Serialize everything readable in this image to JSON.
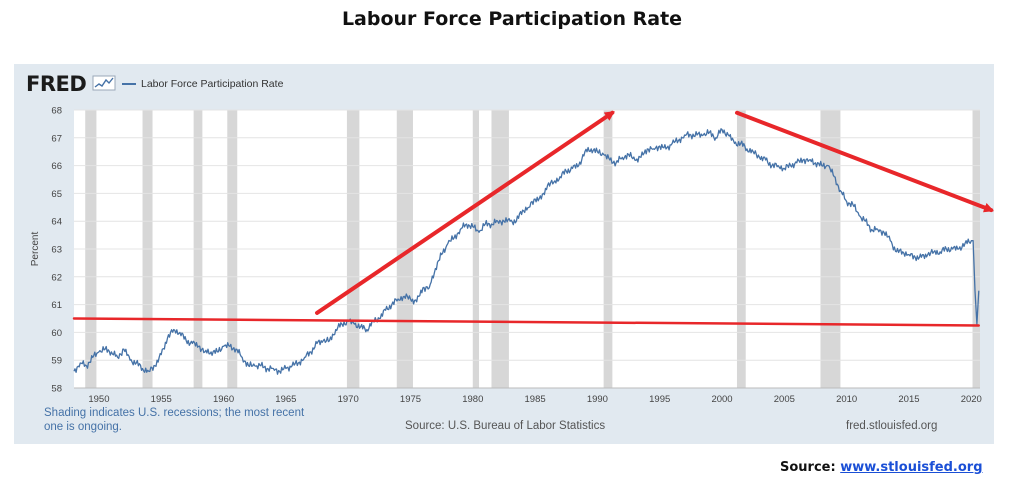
{
  "page_title": "Labour Force Participation Rate",
  "fred": {
    "logo": "FRED",
    "logo_icon": "sparkline-icon",
    "legend_label": "Labor Force Participation Rate"
  },
  "notes": {
    "shading": "Shading indicates U.S. recessions; the most recent one is ongoing.",
    "source": "Source: U.S. Bureau of Labor Statistics",
    "site": "fred.stlouisfed.org"
  },
  "attribution": {
    "label": "Source:",
    "link_text": "www.stlouisfed.org"
  },
  "chart_data": {
    "type": "line",
    "title": "",
    "ylabel": "Percent",
    "xlabel": "",
    "xlim": [
      1948,
      2020.7
    ],
    "ylim": [
      58,
      68
    ],
    "x_ticks": [
      1950,
      1955,
      1960,
      1965,
      1970,
      1975,
      1980,
      1985,
      1990,
      1995,
      2000,
      2005,
      2010,
      2015,
      2020
    ],
    "y_ticks": [
      58,
      59,
      60,
      61,
      62,
      63,
      64,
      65,
      66,
      67,
      68
    ],
    "grid": "horizontal",
    "colors": {
      "series": "#4572a7",
      "annotation": "#e8272a",
      "recession": "#d7d7d7"
    },
    "recessions": [
      [
        1948.9,
        1949.8
      ],
      [
        1953.5,
        1954.3
      ],
      [
        1957.6,
        1958.3
      ],
      [
        1960.3,
        1961.1
      ],
      [
        1969.9,
        1970.9
      ],
      [
        1973.9,
        1975.2
      ],
      [
        1980.0,
        1980.5
      ],
      [
        1981.5,
        1982.9
      ],
      [
        1990.5,
        1991.2
      ],
      [
        2001.2,
        2001.9
      ],
      [
        2007.9,
        2009.5
      ],
      [
        2020.1,
        2020.7
      ]
    ],
    "series": [
      {
        "name": "Labor Force Participation Rate",
        "x": [
          1948.0,
          1948.5,
          1949.0,
          1949.5,
          1950.0,
          1950.5,
          1951.0,
          1951.5,
          1952.0,
          1952.5,
          1953.0,
          1953.5,
          1954.0,
          1954.5,
          1955.0,
          1955.5,
          1956.0,
          1956.5,
          1957.0,
          1957.5,
          1958.0,
          1958.5,
          1959.0,
          1959.5,
          1960.0,
          1960.5,
          1961.0,
          1961.5,
          1962.0,
          1962.5,
          1963.0,
          1963.5,
          1964.0,
          1964.5,
          1965.0,
          1965.5,
          1966.0,
          1966.5,
          1967.0,
          1967.5,
          1968.0,
          1968.5,
          1969.0,
          1969.5,
          1970.0,
          1970.5,
          1971.0,
          1971.5,
          1972.0,
          1972.5,
          1973.0,
          1973.5,
          1974.0,
          1974.5,
          1975.0,
          1975.5,
          1976.0,
          1976.5,
          1977.0,
          1977.5,
          1978.0,
          1978.5,
          1979.0,
          1979.5,
          1980.0,
          1980.5,
          1981.0,
          1981.5,
          1982.0,
          1982.5,
          1983.0,
          1983.5,
          1984.0,
          1984.5,
          1985.0,
          1985.5,
          1986.0,
          1986.5,
          1987.0,
          1987.5,
          1988.0,
          1988.5,
          1989.0,
          1989.5,
          1990.0,
          1990.5,
          1991.0,
          1991.5,
          1992.0,
          1992.5,
          1993.0,
          1993.5,
          1994.0,
          1994.5,
          1995.0,
          1995.5,
          1996.0,
          1996.5,
          1997.0,
          1997.5,
          1998.0,
          1998.5,
          1999.0,
          1999.5,
          2000.0,
          2000.5,
          2001.0,
          2001.5,
          2002.0,
          2002.5,
          2003.0,
          2003.5,
          2004.0,
          2004.5,
          2005.0,
          2005.5,
          2006.0,
          2006.5,
          2007.0,
          2007.5,
          2008.0,
          2008.5,
          2009.0,
          2009.5,
          2010.0,
          2010.5,
          2011.0,
          2011.5,
          2012.0,
          2012.5,
          2013.0,
          2013.5,
          2014.0,
          2014.5,
          2015.0,
          2015.5,
          2016.0,
          2016.5,
          2017.0,
          2017.5,
          2018.0,
          2018.5,
          2019.0,
          2019.5,
          2020.0,
          2020.15,
          2020.3,
          2020.45,
          2020.6
        ],
        "values": [
          58.6,
          58.9,
          58.8,
          59.1,
          59.3,
          59.4,
          59.3,
          59.1,
          59.4,
          59.0,
          58.9,
          58.7,
          58.6,
          58.8,
          59.2,
          59.8,
          60.1,
          60.0,
          59.7,
          59.6,
          59.5,
          59.3,
          59.3,
          59.3,
          59.5,
          59.5,
          59.4,
          59.1,
          58.8,
          58.8,
          58.8,
          58.7,
          58.7,
          58.6,
          58.7,
          58.8,
          58.9,
          59.1,
          59.3,
          59.6,
          59.7,
          59.7,
          60.1,
          60.3,
          60.4,
          60.3,
          60.2,
          60.1,
          60.4,
          60.5,
          60.8,
          61.0,
          61.2,
          61.3,
          61.2,
          61.1,
          61.6,
          61.6,
          62.3,
          62.8,
          63.2,
          63.4,
          63.7,
          63.9,
          63.8,
          63.6,
          63.9,
          63.9,
          64.0,
          64.0,
          64.0,
          64.0,
          64.4,
          64.5,
          64.8,
          64.8,
          65.3,
          65.4,
          65.6,
          65.8,
          65.9,
          66.0,
          66.5,
          66.6,
          66.5,
          66.4,
          66.2,
          66.1,
          66.3,
          66.4,
          66.2,
          66.3,
          66.6,
          66.6,
          66.7,
          66.6,
          66.8,
          66.9,
          67.1,
          67.1,
          67.1,
          67.1,
          67.2,
          67.0,
          67.3,
          67.1,
          66.8,
          66.8,
          66.6,
          66.5,
          66.3,
          66.2,
          66.0,
          66.0,
          65.9,
          66.0,
          66.1,
          66.2,
          66.2,
          66.1,
          66.0,
          66.0,
          65.6,
          65.1,
          64.7,
          64.6,
          64.2,
          64.0,
          63.7,
          63.7,
          63.6,
          63.3,
          62.9,
          62.9,
          62.8,
          62.7,
          62.7,
          62.8,
          62.9,
          62.9,
          63.0,
          63.0,
          63.0,
          63.2,
          63.3,
          63.3,
          61.5,
          60.3,
          61.5
        ]
      }
    ],
    "annotations": [
      {
        "type": "arrow",
        "from": [
          1967.5,
          60.7
        ],
        "to": [
          1991.2,
          67.9
        ]
      },
      {
        "type": "arrow",
        "from": [
          2001.2,
          67.9
        ],
        "to": [
          2021.6,
          64.4
        ]
      },
      {
        "type": "line",
        "from": [
          1948.0,
          60.5
        ],
        "to": [
          2020.6,
          60.25
        ]
      }
    ]
  }
}
